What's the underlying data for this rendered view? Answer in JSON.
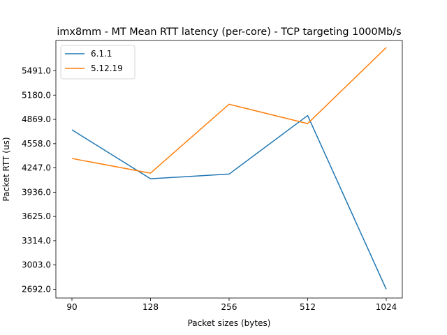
{
  "chart_data": {
    "type": "line",
    "title": "imx8mm - MT Mean RTT latency (per-core) - TCP targeting 1000Mb/s",
    "xlabel": "Packet sizes (bytes)",
    "ylabel": "Packet RTT (us)",
    "categories": [
      "90",
      "128",
      "256",
      "512",
      "1024"
    ],
    "y_ticks": [
      "2692.0",
      "3003.0",
      "3314.0",
      "3625.0",
      "3936.0",
      "4247.0",
      "4558.0",
      "4869.0",
      "5180.0",
      "5491.0"
    ],
    "ylim": [
      2580,
      5880
    ],
    "grid": false,
    "legend_position": "upper-left",
    "series": [
      {
        "name": "6.1.1",
        "color": "#1f77b4",
        "values": [
          4735,
          4108,
          4168,
          4918,
          2692
        ]
      },
      {
        "name": "5.12.19",
        "color": "#ff7f0e",
        "values": [
          4368,
          4180,
          5063,
          4815,
          5790
        ]
      }
    ]
  }
}
